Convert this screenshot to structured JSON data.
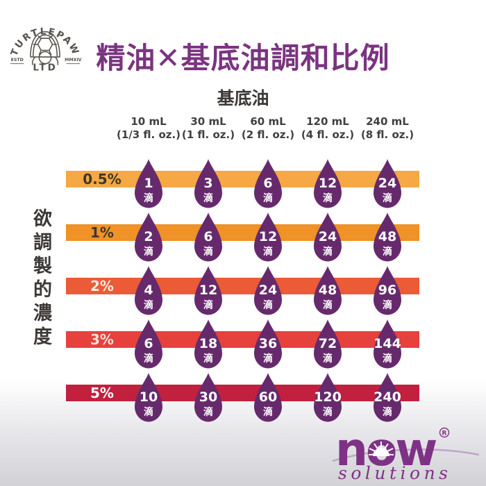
{
  "brand_logo": {
    "name": "TURTLEPAW",
    "suffix": "LTD",
    "estd": "ESTD",
    "year": "MMXIV",
    "color": "#55504a"
  },
  "title": {
    "text": "精油✕基底油調和比例",
    "color": "#7a3480"
  },
  "table": {
    "header": "基底油",
    "axis_label": "欲調製的濃度",
    "drop_unit": "滴",
    "drop_color": "#662a6c",
    "columns": [
      {
        "volume": "10 mL",
        "oz": "(1/3 fl. oz.)"
      },
      {
        "volume": "30 mL",
        "oz": "(1 fl. oz.)"
      },
      {
        "volume": "60 mL",
        "oz": "(2 fl. oz.)"
      },
      {
        "volume": "120 mL",
        "oz": "(4 fl. oz.)"
      },
      {
        "volume": "240 mL",
        "oz": "(8 fl. oz.)"
      }
    ],
    "rows": [
      {
        "label": "0.5%",
        "bar_color": "#f5a843",
        "label_color": "#3f372b",
        "drops": [
          "1",
          "3",
          "6",
          "12",
          "24"
        ]
      },
      {
        "label": "1%",
        "bar_color": "#ef9227",
        "label_color": "#3f372b",
        "drops": [
          "2",
          "6",
          "12",
          "24",
          "48"
        ]
      },
      {
        "label": "2%",
        "bar_color": "#eb5b36",
        "label_color": "#fbede4",
        "drops": [
          "4",
          "12",
          "24",
          "48",
          "96"
        ]
      },
      {
        "label": "3%",
        "bar_color": "#e6413c",
        "label_color": "#fbdfd8",
        "drops": [
          "6",
          "18",
          "36",
          "72",
          "144"
        ]
      },
      {
        "label": "5%",
        "bar_color": "#c1203e",
        "label_color": "#ffffff",
        "drops": [
          "10",
          "30",
          "60",
          "120",
          "240"
        ]
      }
    ]
  },
  "footer_logo": {
    "name": "now",
    "registered": "®",
    "subtitle": "solutions",
    "color": "#7e3285",
    "swoosh_color": "#c2a3c7"
  },
  "chart_data": {
    "type": "table",
    "title": "精油✕基底油調和比例",
    "columns_axis_label": "基底油",
    "rows_axis_label": "欲調製的濃度",
    "columns": [
      "10 mL (1/3 fl. oz.)",
      "30 mL (1 fl. oz.)",
      "60 mL (2 fl. oz.)",
      "120 mL (4 fl. oz.)",
      "240 mL (8 fl. oz.)"
    ],
    "rows": [
      "0.5%",
      "1%",
      "2%",
      "3%",
      "5%"
    ],
    "values": [
      [
        1,
        3,
        6,
        12,
        24
      ],
      [
        2,
        6,
        12,
        24,
        48
      ],
      [
        4,
        12,
        24,
        48,
        96
      ],
      [
        6,
        18,
        36,
        72,
        144
      ],
      [
        10,
        30,
        60,
        120,
        240
      ]
    ],
    "unit": "滴 (drops)",
    "legend_position": "none",
    "grid": false
  }
}
